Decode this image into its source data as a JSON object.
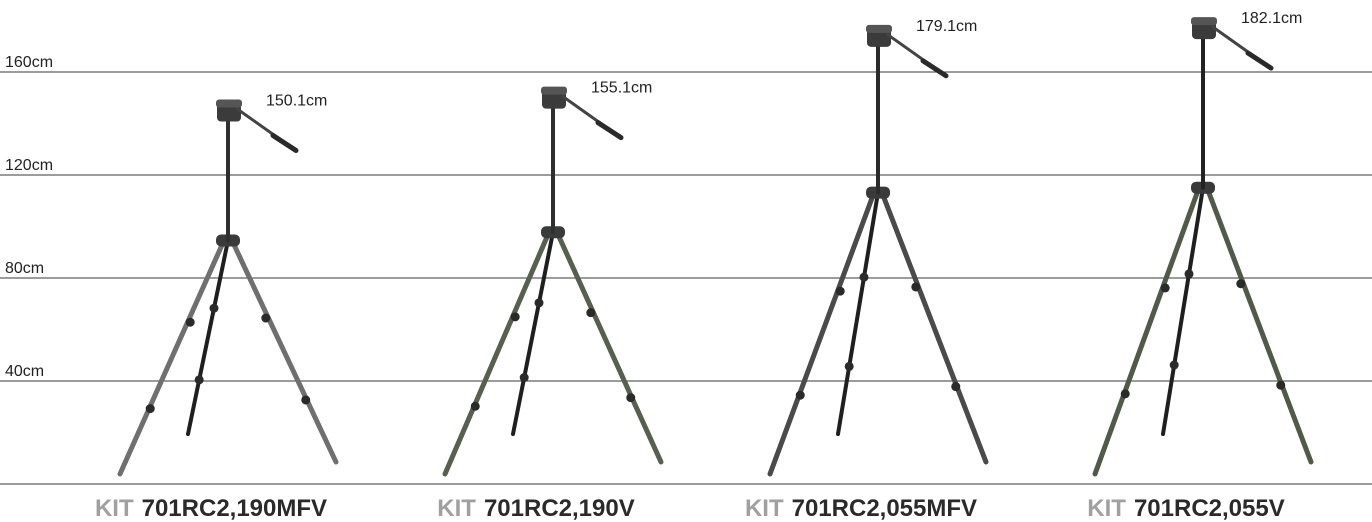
{
  "grid": {
    "unit": "cm",
    "lines": [
      {
        "value": 160,
        "label": "160cm"
      },
      {
        "value": 120,
        "label": "120cm"
      },
      {
        "value": 80,
        "label": "80cm"
      },
      {
        "value": 40,
        "label": "40cm"
      },
      {
        "value": 0,
        "label": ""
      }
    ]
  },
  "kits": [
    {
      "prefix": "KIT",
      "model": "701RC2,190MFV",
      "height_cm": 150.1,
      "height_label": "150.1cm",
      "leg_color": "#6f6f6f",
      "center_color": "#2f2f2f"
    },
    {
      "prefix": "KIT",
      "model": "701RC2,190V",
      "height_cm": 155.1,
      "height_label": "155.1cm",
      "leg_color": "#55604f",
      "center_color": "#2f2f2f"
    },
    {
      "prefix": "KIT",
      "model": "701RC2,055MFV",
      "height_cm": 179.1,
      "height_label": "179.1cm",
      "leg_color": "#4a4a4a",
      "center_color": "#2a2a2a"
    },
    {
      "prefix": "KIT",
      "model": "701RC2,055V",
      "height_cm": 182.1,
      "height_label": "182.1cm",
      "leg_color": "#4f5a49",
      "center_color": "#222222"
    }
  ]
}
